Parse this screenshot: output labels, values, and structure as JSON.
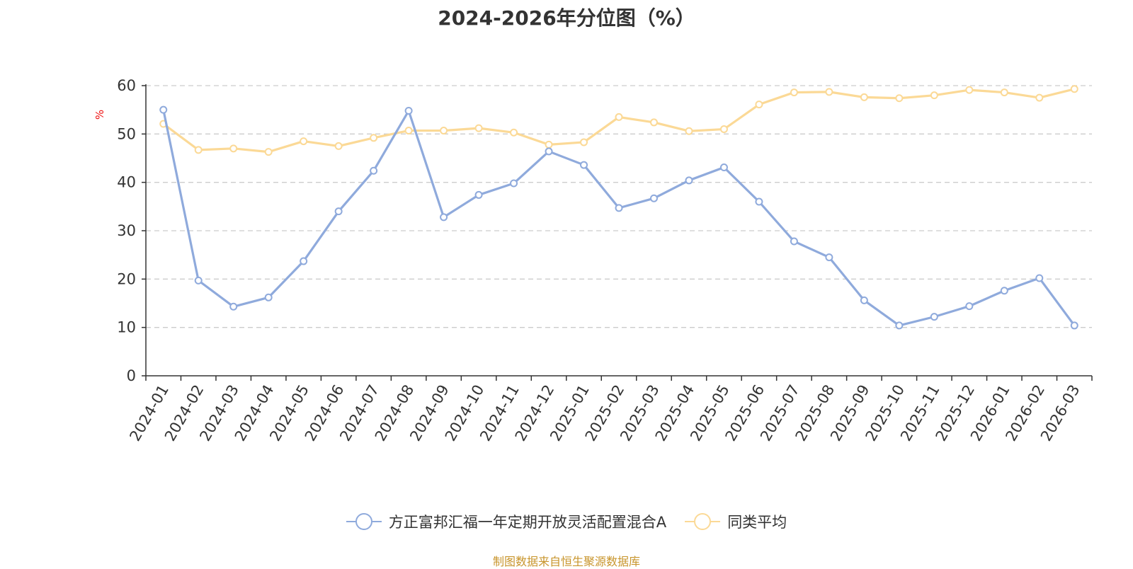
{
  "chart_data": {
    "type": "line",
    "title": "2024-2026年分位图（%）",
    "ylabel": "%",
    "xlabel": "",
    "ylim": [
      0,
      60
    ],
    "yticks": [
      0,
      10,
      20,
      30,
      40,
      50,
      60
    ],
    "grid": true,
    "legend_position": "bottom-center",
    "categories": [
      "2024-01",
      "2024-02",
      "2024-03",
      "2024-04",
      "2024-05",
      "2024-06",
      "2024-07",
      "2024-08",
      "2024-09",
      "2024-10",
      "2024-11",
      "2024-12",
      "2025-01",
      "2025-02",
      "2025-03",
      "2025-04",
      "2025-05",
      "2025-06",
      "2025-07",
      "2025-08",
      "2025-09",
      "2025-10",
      "2025-11",
      "2025-12",
      "2026-01",
      "2026-02",
      "2026-03"
    ],
    "series": [
      {
        "name": "方正富邦汇福一年定期开放灵活配置混合A",
        "color": "#8faadc",
        "values": [
          55.0,
          19.7,
          14.3,
          16.2,
          23.7,
          34.0,
          42.4,
          54.8,
          32.8,
          37.4,
          39.8,
          46.4,
          43.6,
          34.7,
          36.7,
          40.4,
          43.1,
          36.0,
          27.8,
          24.5,
          15.6,
          10.4,
          12.2,
          14.4,
          17.6,
          20.2,
          10.4
        ]
      },
      {
        "name": "同类平均",
        "color": "#fbd996",
        "values": [
          52.1,
          46.7,
          47.0,
          46.3,
          48.5,
          47.5,
          49.2,
          50.7,
          50.7,
          51.2,
          50.3,
          47.8,
          48.3,
          53.5,
          52.4,
          50.6,
          51.0,
          56.1,
          58.6,
          58.7,
          57.6,
          57.4,
          58.0,
          59.1,
          58.6,
          57.5,
          59.3
        ]
      }
    ]
  },
  "footer": {
    "source_note": "制图数据来自恒生聚源数据库"
  }
}
